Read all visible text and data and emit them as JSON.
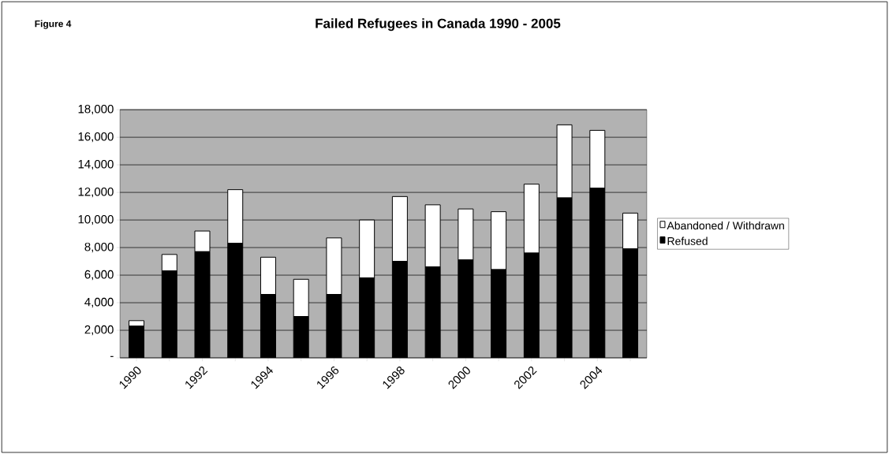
{
  "chart_data": {
    "type": "bar",
    "title": "Failed Refugees in Canada 1990 - 2005",
    "annotations": [
      "Figure 4"
    ],
    "categories": [
      "1990",
      null,
      "1992",
      null,
      "1994",
      null,
      "1996",
      null,
      "1998",
      null,
      "2000",
      null,
      "2002",
      null,
      "2004",
      null
    ],
    "stacked": true,
    "series": [
      {
        "name": "Refused",
        "color": "#000000",
        "values": [
          2300,
          6300,
          7700,
          8300,
          4600,
          3000,
          4600,
          5800,
          7000,
          6600,
          7100,
          6400,
          7600,
          11600,
          12300,
          7900
        ]
      },
      {
        "name": "Abandoned / Withdrawn",
        "color": "#ffffff",
        "values": [
          400,
          1200,
          1500,
          3900,
          2700,
          2700,
          4100,
          4200,
          4700,
          4500,
          3700,
          4200,
          5000,
          5300,
          4200,
          2600
        ]
      }
    ],
    "ylim": [
      0,
      18000
    ],
    "yticks": [
      {
        "value": 0,
        "label": "-"
      },
      {
        "value": 2000,
        "label": "2,000"
      },
      {
        "value": 4000,
        "label": "4,000"
      },
      {
        "value": 6000,
        "label": "6,000"
      },
      {
        "value": 8000,
        "label": "8,000"
      },
      {
        "value": 10000,
        "label": "10,000"
      },
      {
        "value": 12000,
        "label": "12,000"
      },
      {
        "value": 14000,
        "label": "14,000"
      },
      {
        "value": 16000,
        "label": "16,000"
      },
      {
        "value": 18000,
        "label": "18,000"
      }
    ],
    "grid": "y",
    "legend": "right"
  }
}
